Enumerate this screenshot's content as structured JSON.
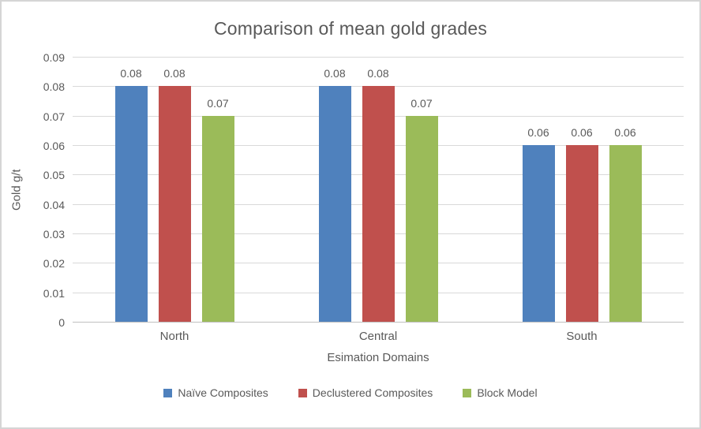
{
  "title": "Comparison of mean gold grades",
  "colors": {
    "text": "#595959",
    "gridline": "#D9D9D9",
    "axis_line": "#BFBFBF",
    "frame_border": "#D5D5D5",
    "background": "#FFFFFF",
    "series_blue": "#4F81BD",
    "series_red": "#C0504D",
    "series_green": "#9BBB59"
  },
  "chart_data": {
    "type": "bar",
    "title": "Comparison of mean gold grades",
    "xlabel": "Esimation Domains",
    "ylabel": "Gold g/t",
    "categories": [
      "North",
      "Central",
      "South"
    ],
    "category_slugs": [
      "north",
      "central",
      "south"
    ],
    "series": [
      {
        "name": "Naïve Composites",
        "slug": "naive-composites",
        "color": "#4F81BD",
        "values": [
          0.08,
          0.08,
          0.06
        ],
        "labels": [
          "0.08",
          "0.08",
          "0.06"
        ]
      },
      {
        "name": "Declustered Composites",
        "slug": "declustered-composites",
        "color": "#C0504D",
        "values": [
          0.08,
          0.08,
          0.06
        ],
        "labels": [
          "0.08",
          "0.08",
          "0.06"
        ]
      },
      {
        "name": "Block Model",
        "slug": "block-model",
        "color": "#9BBB59",
        "values": [
          0.07,
          0.07,
          0.06
        ],
        "labels": [
          "0.07",
          "0.07",
          "0.06"
        ]
      }
    ],
    "ylim": [
      0,
      0.09
    ],
    "ytick_step": 0.01,
    "yticks": [
      {
        "label": "0",
        "value": 0
      },
      {
        "label": "0.01",
        "value": 0.01
      },
      {
        "label": "0.02",
        "value": 0.02
      },
      {
        "label": "0.03",
        "value": 0.03
      },
      {
        "label": "0.04",
        "value": 0.04
      },
      {
        "label": "0.05",
        "value": 0.05
      },
      {
        "label": "0.06",
        "value": 0.06
      },
      {
        "label": "0.07",
        "value": 0.07
      },
      {
        "label": "0.08",
        "value": 0.08
      },
      {
        "label": "0.09",
        "value": 0.09
      }
    ],
    "grid": true,
    "legend_position": "bottom"
  }
}
